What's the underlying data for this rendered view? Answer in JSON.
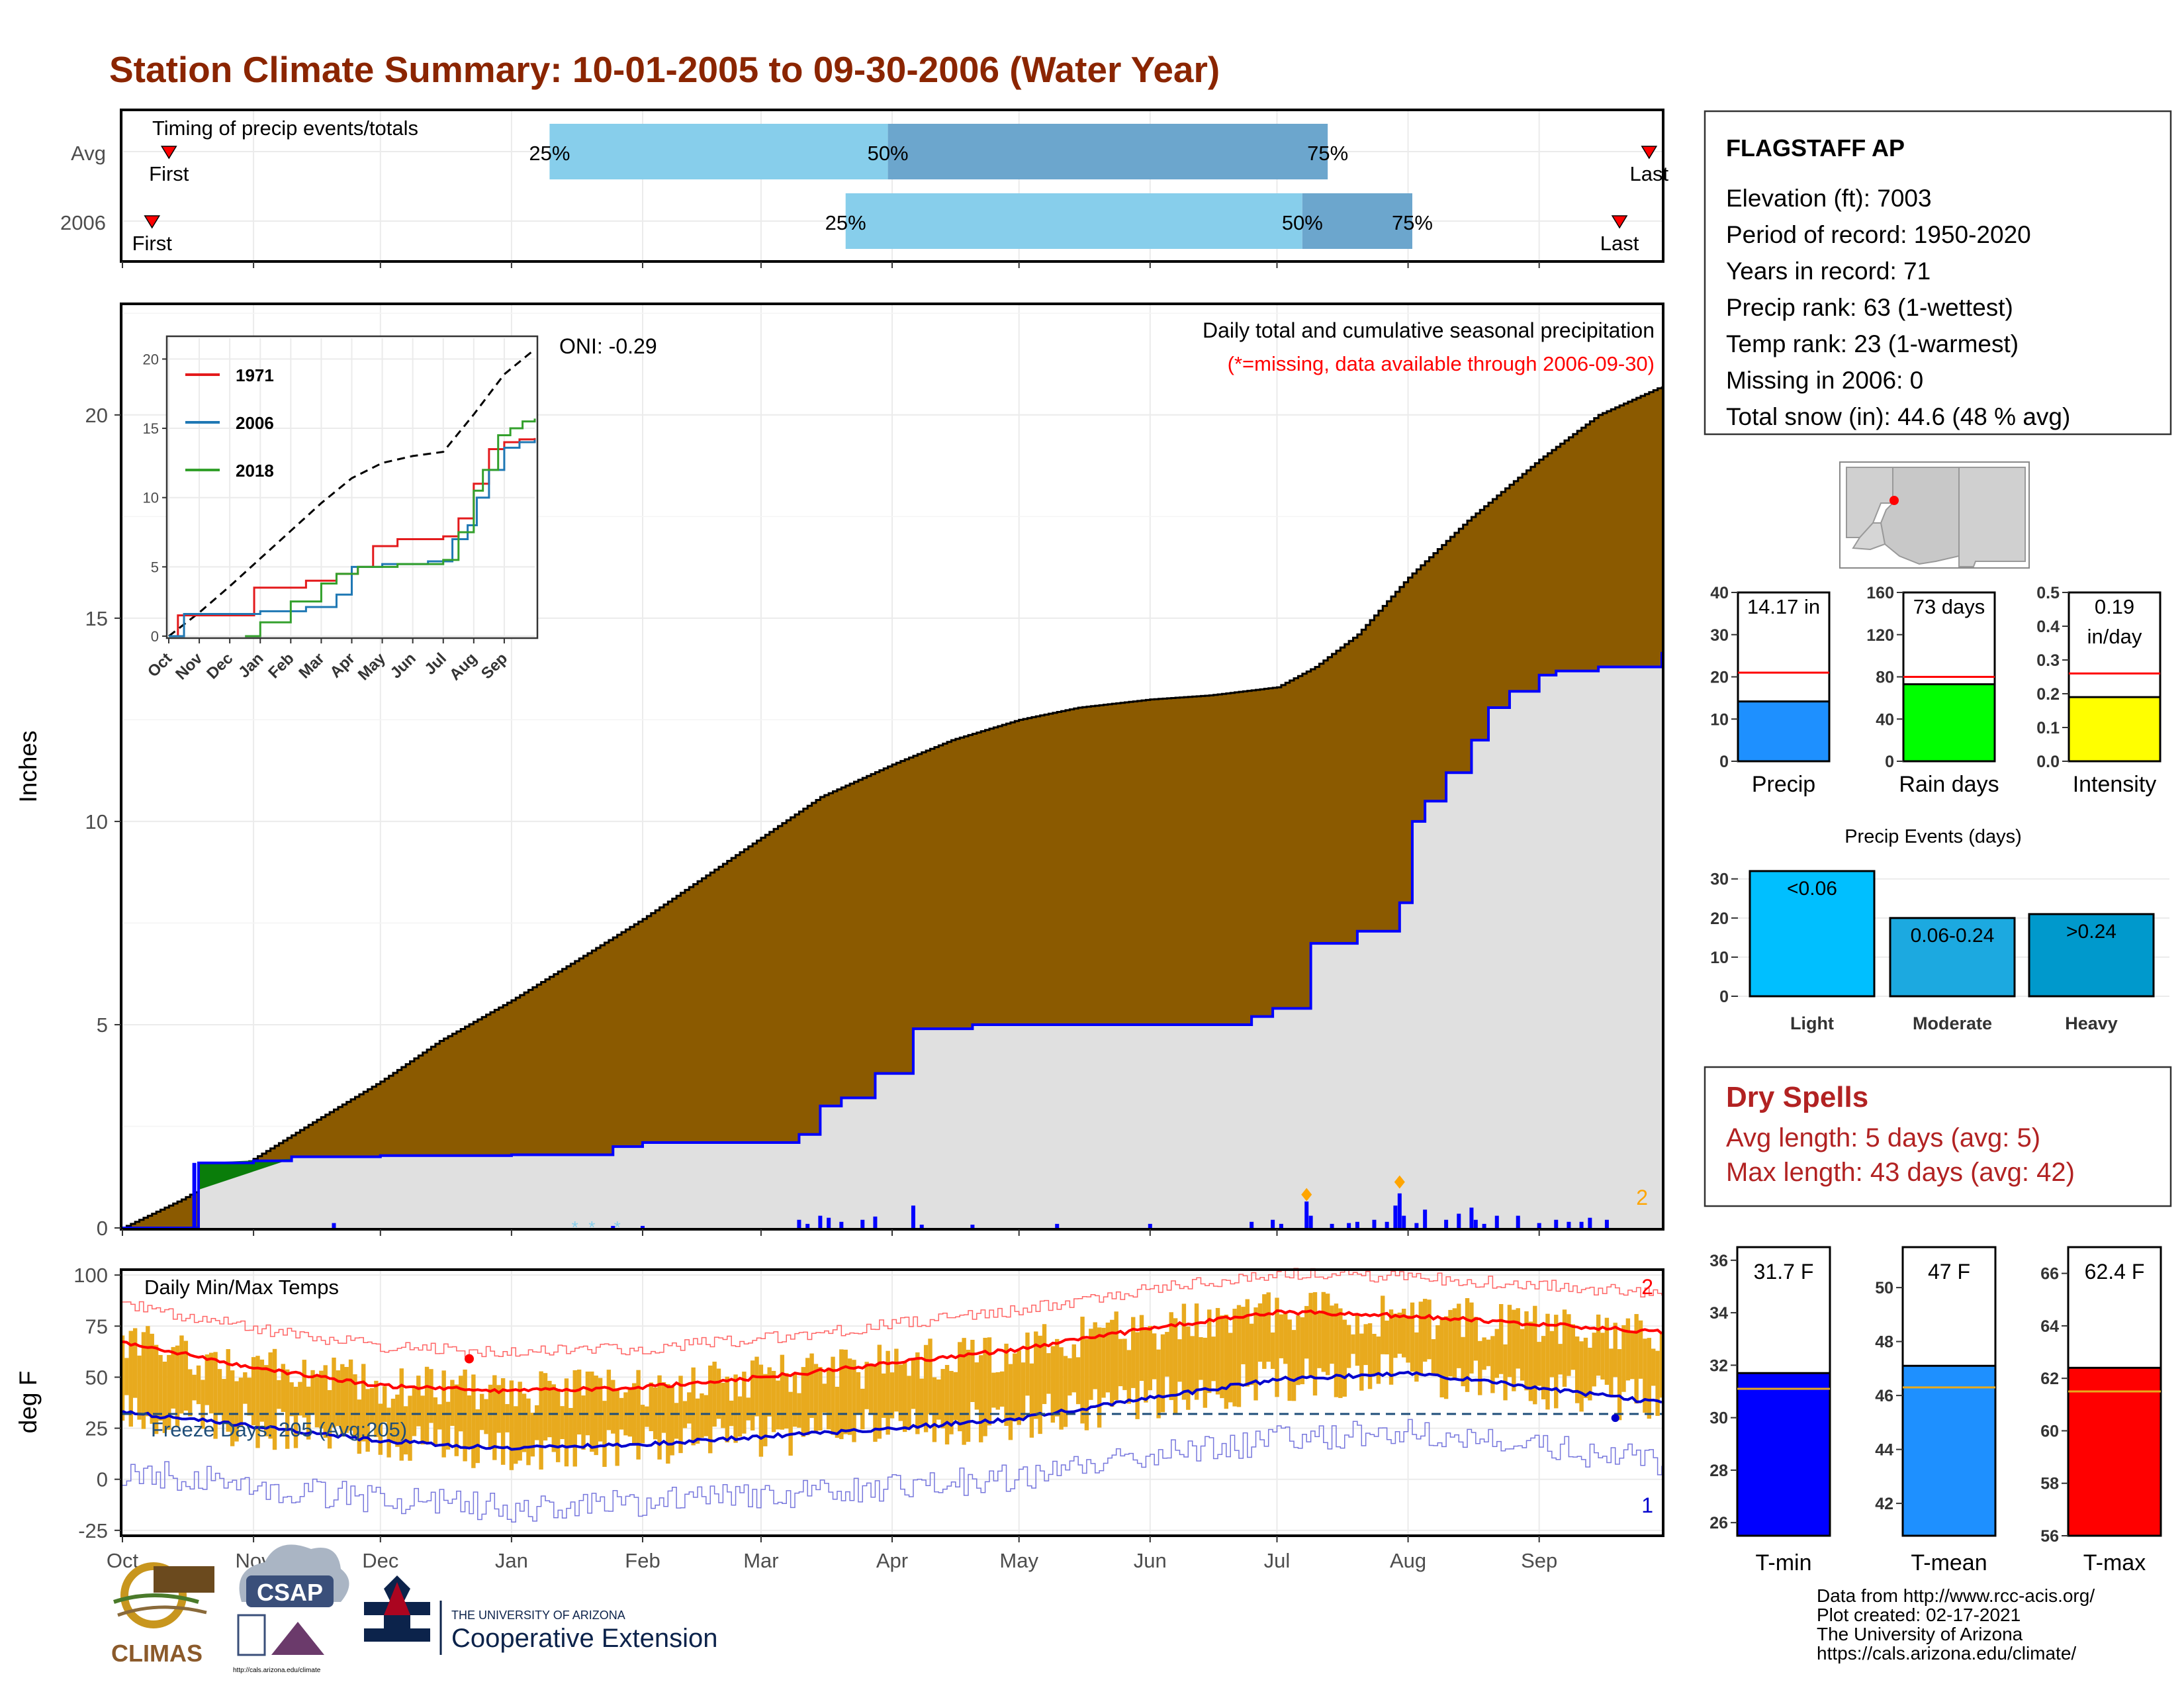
{
  "title": "Station Climate Summary: 10-01-2005 to 09-30-2006 (Water Year)",
  "colors": {
    "title": "#8B2500",
    "precip_fill_avg": "#8B5A00",
    "precip_fill_year": "#e0e0e0",
    "year_line": "#0000ff",
    "tmax_line": "#ff0000",
    "tmin_line": "#0000cd",
    "daily_range": "#E8AA1E",
    "timing_light": "#87CEEB",
    "timing_dark": "#6CA6CD",
    "dry_spells_text": "#B22222"
  },
  "timing_panel": {
    "title": "Timing of precip events/totals",
    "rows": [
      {
        "label": "Avg",
        "first": "First",
        "last": "Last",
        "p25": "25%",
        "p50": "50%",
        "p75": "75%",
        "first_date": "2005-10-12",
        "last_date": "2006-09-27",
        "p25_date": "2006-01-10",
        "p50_date": "2006-03-31",
        "p75_date": "2006-07-13"
      },
      {
        "label": "2006",
        "first": "First",
        "last": "Last",
        "p25": "25%",
        "p50": "50%",
        "p75": "75%",
        "first_date": "2005-10-08",
        "last_date": "2006-09-20",
        "p25_date": "2006-03-21",
        "p50_date": "2006-07-07",
        "p75_date": "2006-08-02"
      }
    ]
  },
  "main_panel": {
    "y_axis_label": "Inches",
    "oni": "ONI: -0.29",
    "caption": "Daily total and cumulative seasonal precipitation",
    "missing_note": "(*=missing, data available through 2006-09-30)",
    "corner_note": "2"
  },
  "inset": {
    "legend": [
      "1971",
      "2006",
      "2018"
    ],
    "legend_colors": [
      "#e31a1c",
      "#1f78b4",
      "#33a02c"
    ]
  },
  "temp_panel": {
    "y_axis_label": "deg F",
    "title": "Daily Min/Max Temps",
    "freeze_days": "Freeze Days: 205 (Avg:205)",
    "note_top": "2",
    "note_bottom": "1"
  },
  "station": {
    "name": "FLAGSTAFF AP",
    "lines": [
      "Elevation (ft): 7003",
      "Period of record: 1950-2020",
      "Years in record: 71",
      "Precip rank: 63 (1-wettest)",
      "Temp rank: 23 (1-warmest)",
      "Missing in 2006: 0",
      "Total snow (in): 44.6 (48 % avg)"
    ]
  },
  "summary_bars": [
    {
      "label": "Precip",
      "value_text": "14.17 in",
      "value_text2": "",
      "value": 14.17,
      "avg": 21,
      "ymax": 40,
      "ticks": [
        "0",
        "10",
        "20",
        "30",
        "40"
      ],
      "tickvals": [
        0,
        10,
        20,
        30,
        40
      ],
      "color": "#1E90FF"
    },
    {
      "label": "Rain days",
      "value_text": "73 days",
      "value_text2": "",
      "value": 73,
      "avg": 80,
      "ymax": 160,
      "ticks": [
        "0",
        "40",
        "80",
        "120",
        "160"
      ],
      "tickvals": [
        0,
        40,
        80,
        120,
        160
      ],
      "color": "#00FF00"
    },
    {
      "label": "Intensity",
      "value_text": "0.19",
      "value_text2": "in/day",
      "value": 0.19,
      "avg": 0.26,
      "ymax": 0.5,
      "ticks": [
        "0.0",
        "0.1",
        "0.2",
        "0.3",
        "0.4",
        "0.5"
      ],
      "tickvals": [
        0,
        0.1,
        0.2,
        0.3,
        0.4,
        0.5
      ],
      "color": "#FFFF00"
    }
  ],
  "precip_events": {
    "title": "Precip Events (days)",
    "ticks": [
      "0",
      "10",
      "20",
      "30"
    ],
    "tickvals": [
      0,
      10,
      20,
      30
    ],
    "bars": [
      {
        "category": "Light",
        "label": "<0.06",
        "value": 32,
        "color": "#00BFFF"
      },
      {
        "category": "Moderate",
        "label": "0.06-0.24",
        "value": 20,
        "color": "#1CA9E0"
      },
      {
        "category": "Heavy",
        "label": ">0.24",
        "value": 21,
        "color": "#0099CC"
      }
    ]
  },
  "dry_spells": {
    "title": "Dry Spells",
    "avg_line": "Avg length: 5 days (avg: 5)",
    "max_line": "Max length: 43 days (avg: 42)"
  },
  "temp_bars": [
    {
      "label": "T-min",
      "value_text": "31.7 F",
      "value": 31.7,
      "avg": 31.1,
      "ymin": 25.5,
      "ymax": 36.5,
      "ticks": [
        "26",
        "28",
        "30",
        "32",
        "34",
        "36"
      ],
      "tickvals": [
        26,
        28,
        30,
        32,
        34,
        36
      ],
      "color": "#0000FF"
    },
    {
      "label": "T-mean",
      "value_text": "47 F",
      "value": 47.1,
      "avg": 46.3,
      "ymin": 40.8,
      "ymax": 51.5,
      "ticks": [
        "42",
        "44",
        "46",
        "48",
        "50"
      ],
      "tickvals": [
        42,
        44,
        46,
        48,
        50
      ],
      "color": "#1E90FF"
    },
    {
      "label": "T-max",
      "value_text": "62.4 F",
      "value": 62.4,
      "avg": 61.5,
      "ymin": 56,
      "ymax": 67,
      "ticks": [
        "56",
        "58",
        "60",
        "62",
        "64",
        "66"
      ],
      "tickvals": [
        56,
        58,
        60,
        62,
        64,
        66
      ],
      "color": "#FF0000"
    }
  ],
  "footer": {
    "lines": [
      "Data from http://www.rcc-acis.org/",
      "Plot created: 02-17-2021",
      "The University of Arizona",
      "https://cals.arizona.edu/climate/"
    ],
    "logo_climas": "CLIMAS",
    "logo_csap": "CSAP",
    "logo_csap_url": "http://cals.arizona.edu/climate",
    "ua_small": "THE UNIVERSITY OF ARIZONA",
    "ua_big": "Cooperative Extension"
  },
  "chart_data": [
    {
      "type": "area",
      "title": "Daily total and cumulative seasonal precipitation",
      "ylabel": "Inches",
      "x_ticks": [
        "Oct",
        "Nov",
        "Dec",
        "Jan",
        "Feb",
        "Mar",
        "Apr",
        "May",
        "Jun",
        "Jul",
        "Aug",
        "Sep"
      ],
      "ylim": [
        0,
        22.7
      ],
      "y_ticks": [
        0,
        5,
        10,
        15,
        20
      ],
      "series": [
        {
          "name": "avg_cumulative",
          "x": [
            "2005-10-01",
            "2005-10-15",
            "2005-11-01",
            "2005-11-15",
            "2005-12-01",
            "2005-12-15",
            "2006-01-01",
            "2006-01-15",
            "2006-02-01",
            "2006-02-15",
            "2006-03-01",
            "2006-03-15",
            "2006-04-01",
            "2006-04-15",
            "2006-05-01",
            "2006-05-15",
            "2006-06-01",
            "2006-06-15",
            "2006-07-01",
            "2006-07-10",
            "2006-07-20",
            "2006-08-01",
            "2006-08-15",
            "2006-09-01",
            "2006-09-15",
            "2006-09-30"
          ],
          "values": [
            0.0,
            0.7,
            1.7,
            2.6,
            3.6,
            4.6,
            5.6,
            6.5,
            7.6,
            8.6,
            9.6,
            10.6,
            11.4,
            12.0,
            12.5,
            12.8,
            13.0,
            13.1,
            13.3,
            13.8,
            14.6,
            16.0,
            17.4,
            18.9,
            20.0,
            20.7
          ]
        },
        {
          "name": "2006",
          "x": [
            "2005-10-01",
            "2005-10-18",
            "2005-10-19",
            "2005-11-01",
            "2005-11-10",
            "2005-12-01",
            "2006-01-01",
            "2006-01-25",
            "2006-02-01",
            "2006-02-28",
            "2006-03-10",
            "2006-03-15",
            "2006-03-20",
            "2006-03-28",
            "2006-04-06",
            "2006-04-08",
            "2006-04-20",
            "2006-05-01",
            "2006-05-15",
            "2006-06-01",
            "2006-06-15",
            "2006-06-25",
            "2006-06-30",
            "2006-07-09",
            "2006-07-20",
            "2006-07-30",
            "2006-08-02",
            "2006-08-05",
            "2006-08-10",
            "2006-08-16",
            "2006-08-20",
            "2006-08-25",
            "2006-09-01",
            "2006-09-05",
            "2006-09-15",
            "2006-09-30"
          ],
          "values": [
            0.0,
            0.0,
            1.6,
            1.65,
            1.75,
            1.78,
            1.8,
            2.0,
            2.1,
            2.1,
            2.3,
            3.0,
            3.2,
            3.8,
            4.9,
            4.9,
            5.0,
            5.0,
            5.0,
            5.0,
            5.0,
            5.2,
            5.4,
            7.0,
            7.3,
            8.0,
            10.0,
            10.5,
            11.2,
            12.0,
            12.8,
            13.2,
            13.6,
            13.7,
            13.8,
            14.17
          ]
        }
      ]
    },
    {
      "type": "line",
      "title": "Daily Min/Max Temps",
      "ylabel": "deg F",
      "x_ticks": [
        "Oct",
        "Nov",
        "Dec",
        "Jan",
        "Feb",
        "Mar",
        "Apr",
        "May",
        "Jun",
        "Jul",
        "Aug",
        "Sep"
      ],
      "ylim": [
        -27,
        102
      ],
      "y_ticks": [
        -25,
        0,
        25,
        50,
        75,
        100
      ],
      "freeze_line": 32,
      "series": [
        {
          "name": "avg_tmax",
          "x_months": [
            0,
            1,
            2,
            3,
            4,
            5,
            6,
            7,
            8,
            9,
            10,
            11,
            12
          ],
          "values": [
            67,
            55,
            46,
            43,
            45,
            50,
            57,
            64,
            74,
            82,
            80,
            76,
            72
          ]
        },
        {
          "name": "avg_tmin",
          "x_months": [
            0,
            1,
            2,
            3,
            4,
            5,
            6,
            7,
            8,
            9,
            10,
            11,
            12
          ],
          "values": [
            33,
            26,
            19,
            15,
            17,
            21,
            25,
            30,
            40,
            49,
            52,
            45,
            37
          ]
        }
      ]
    },
    {
      "type": "bar",
      "title": "Precip Events (days)",
      "categories": [
        "Light",
        "Moderate",
        "Heavy"
      ],
      "values": [
        32,
        20,
        21
      ],
      "ylim": [
        0,
        33
      ]
    }
  ]
}
